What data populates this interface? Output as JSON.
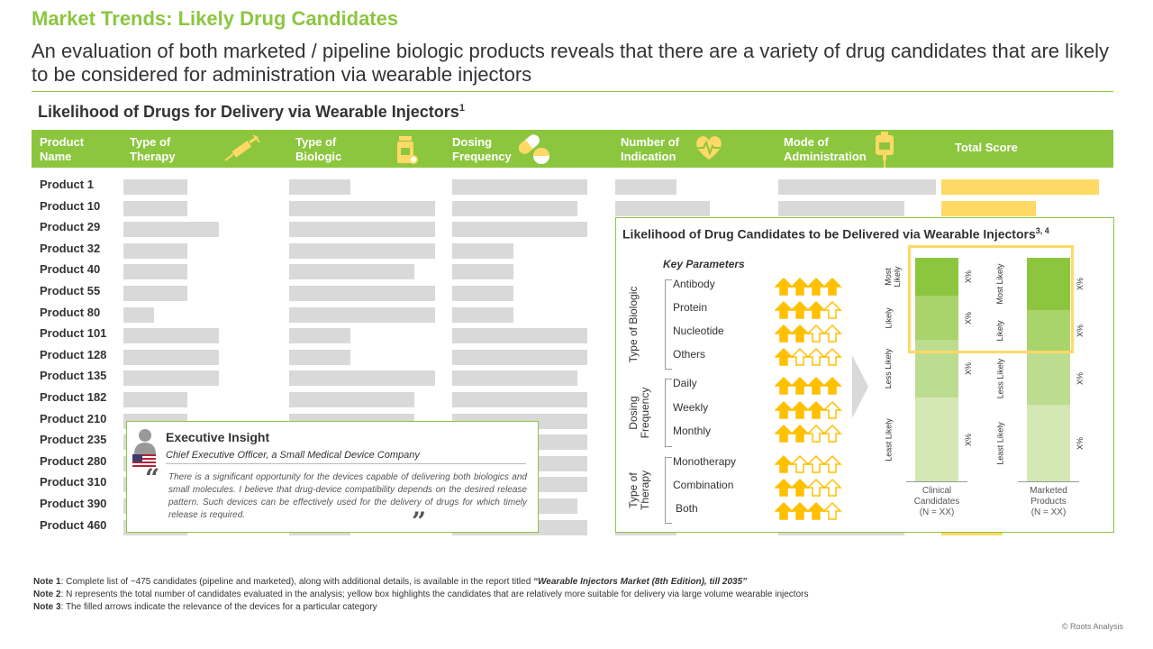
{
  "title": "Market Trends: Likely Drug Candidates",
  "subtitle": "An evaluation of both marketed / pipeline biologic products reveals that there are a variety of drug candidates that are likely to be considered for administration via wearable injectors",
  "section": {
    "title": "Likelihood of Drugs for Delivery via Wearable Injectors",
    "sup": "1"
  },
  "table": {
    "headers": {
      "product": "Product Name",
      "therapy": "Type of Therapy",
      "biologic": "Type of Biologic",
      "dosing": "Dosing Frequency",
      "indication": "Number of Indication",
      "mode": "Mode of Administration",
      "score": "Total Score"
    },
    "rows": [
      {
        "name": "Product 1"
      },
      {
        "name": "Product 10"
      },
      {
        "name": "Product 29"
      },
      {
        "name": "Product 32"
      },
      {
        "name": "Product 40"
      },
      {
        "name": "Product 55"
      },
      {
        "name": "Product 80"
      },
      {
        "name": "Product 101"
      },
      {
        "name": "Product 128"
      },
      {
        "name": "Product 135"
      },
      {
        "name": "Product 182"
      },
      {
        "name": "Product 210"
      },
      {
        "name": "Product 235"
      },
      {
        "name": "Product 280"
      },
      {
        "name": "Product 310"
      },
      {
        "name": "Product 390"
      },
      {
        "name": "Product 460"
      }
    ]
  },
  "insight": {
    "title": "Executive Insight",
    "role": "Chief Executive Officer, a Small Medical Device Company",
    "quote": "There is a significant opportunity for the devices capable of delivering both biologics and small molecules. I believe that drug-device compatibility depends on the desired release pattern. Such devices can be effectively used for the delivery of drugs for which timely release is required."
  },
  "panel": {
    "title": "Likelihood of Drug Candidates to be Delivered via Wearable Injectors",
    "sup": "3, 4",
    "key_parameters": "Key Parameters",
    "groups": [
      {
        "label": "Type of Biologic",
        "params": [
          {
            "name": "Antibody",
            "filled": 4
          },
          {
            "name": "Protein",
            "filled": 3
          },
          {
            "name": "Nucleotide",
            "filled": 2
          },
          {
            "name": "Others",
            "filled": 1
          }
        ]
      },
      {
        "label": "Dosing Frequency",
        "params": [
          {
            "name": "Daily",
            "filled": 4
          },
          {
            "name": "Weekly",
            "filled": 3
          },
          {
            "name": "Monthly",
            "filled": 2
          }
        ]
      },
      {
        "label": "Type of Therapy",
        "params": [
          {
            "name": "Monotherapy",
            "filled": 1
          },
          {
            "name": "Combination",
            "filled": 2
          },
          {
            "name": "Both",
            "filled": 3
          }
        ]
      }
    ],
    "likelihood_labels": {
      "most": "Most Likely",
      "likely": "Likely",
      "less": "Less Likely",
      "least": "Least Likely"
    },
    "value_label": "X%",
    "clinical": "Clinical Candidates",
    "clinical_n": "(N = XX)",
    "marketed": "Marketed Products",
    "marketed_n": "(N = XX)",
    "colors": {
      "most": "#8cc63f",
      "likely": "#a9d46c",
      "less": "#bcdd8f",
      "least": "#d3e8b4"
    }
  },
  "notes": [
    {
      "label": "Note 1",
      "text": ": Complete list of ~475 candidates (pipeline and marketed), along with additional details, is available in the report titled ",
      "report": "“Wearable Injectors Market (8th Edition), till 2035”"
    },
    {
      "label": "Note 2",
      "text": ": N represents the total number of candidates evaluated in the analysis; yellow box highlights the candidates that are relatively more suitable for delivery via large volume wearable injectors"
    },
    {
      "label": "Note 3",
      "text": ": The filled arrows indicate the relevance of the devices for a particular category"
    }
  ],
  "copyright": "© Roots Analysis"
}
